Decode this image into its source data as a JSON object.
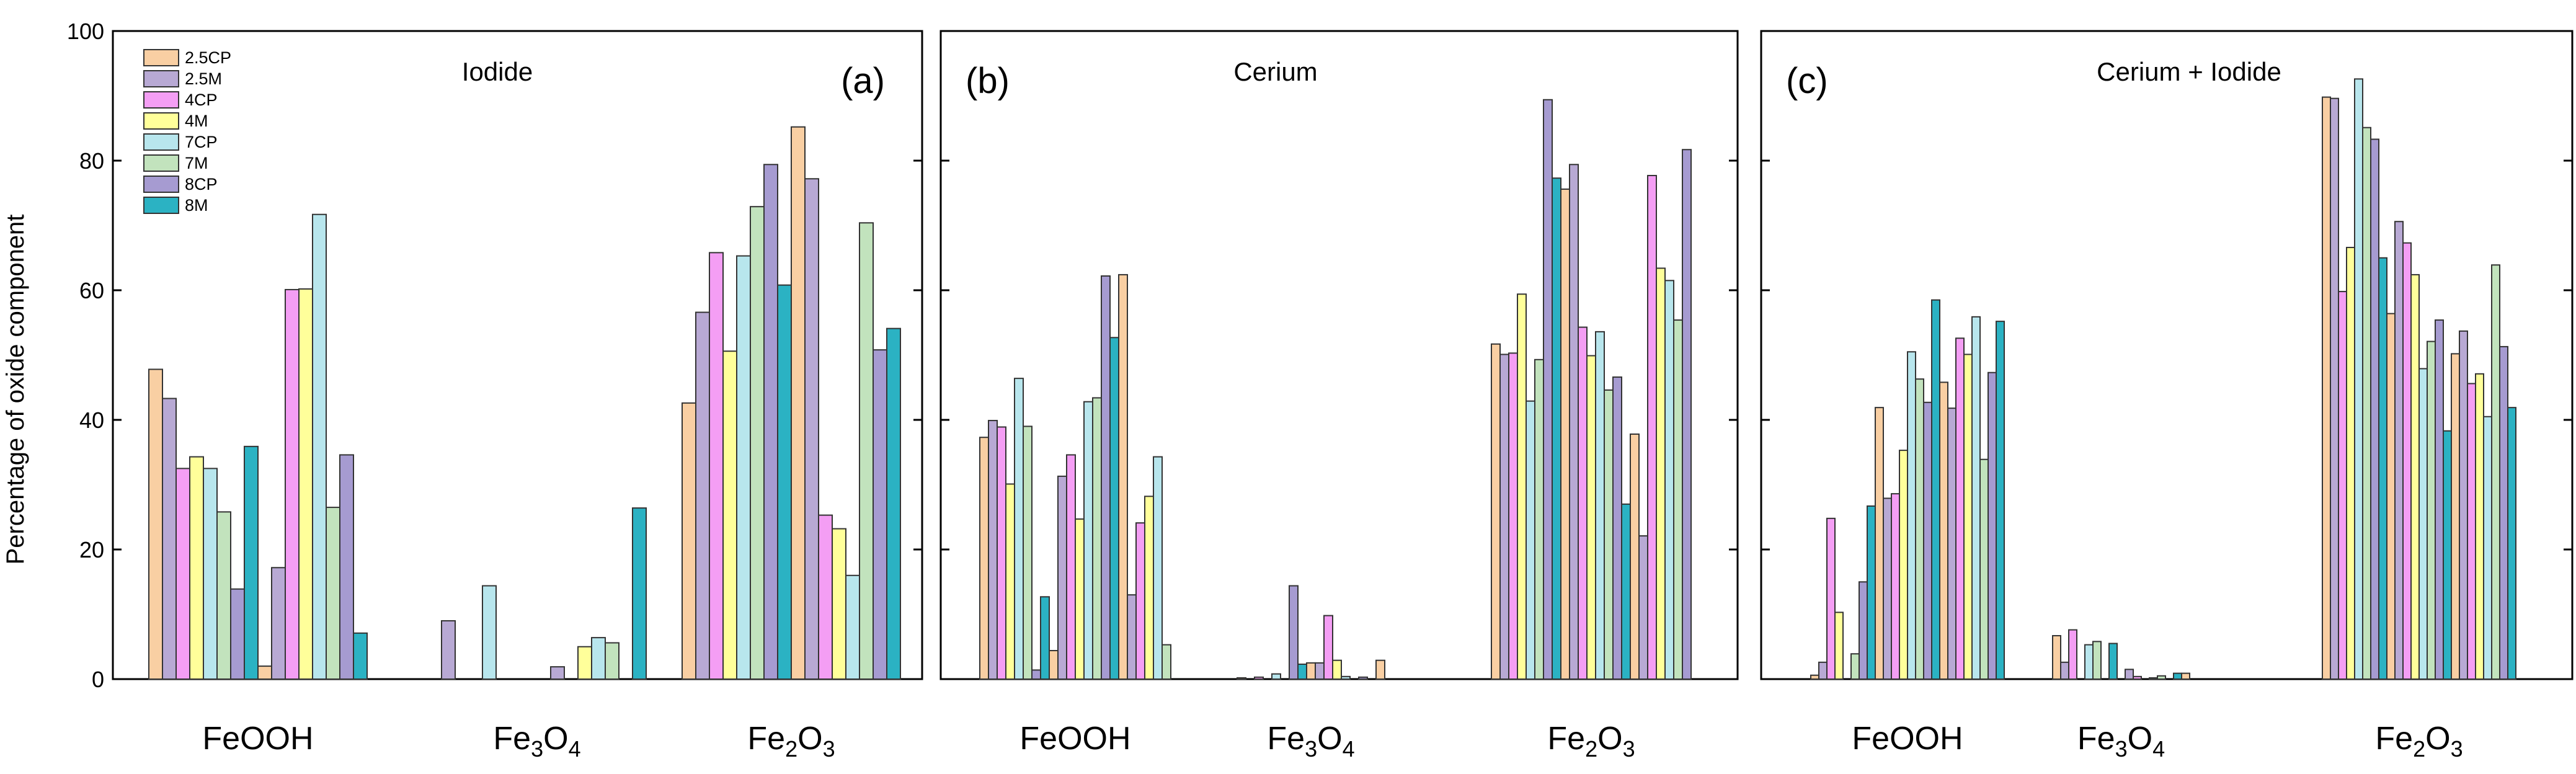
{
  "colors": [
    "#f9cfa3",
    "#b8a9d4",
    "#f49ef4",
    "#ffff9a",
    "#b8e6ed",
    "#c2e3bd",
    "#a69bd1",
    "#2bb2c3"
  ],
  "chart_data": {
    "type": "bar",
    "ylabel": "Percentage of oxide component",
    "ylim": [
      0,
      100
    ],
    "yticks": [
      0,
      20,
      40,
      60,
      80,
      100
    ],
    "legend": [
      "2.5CP",
      "2.5M",
      "4CP",
      "4M",
      "7CP",
      "7M",
      "8CP",
      "8M"
    ],
    "panels": [
      {
        "label": "(a)",
        "title": "Iodide",
        "show_yticks": true,
        "show_legend": true,
        "groups": [
          {
            "name": "FeOOH",
            "values": [
              47.8,
              43.3,
              32.5,
              34.3,
              32.5,
              25.8,
              13.9,
              35.9,
              2.0,
              17.2,
              60.1,
              60.2,
              71.7,
              26.5,
              34.6,
              7.1
            ]
          },
          {
            "name": "Fe3O4",
            "values": [
              0,
              9.0,
              0,
              0,
              14.4,
              0,
              0,
              0,
              0,
              1.9,
              0,
              5.0,
              6.4,
              5.6,
              0,
              26.4
            ]
          },
          {
            "name": "Fe2O3",
            "values": [
              42.6,
              56.6,
              65.8,
              50.6,
              65.3,
              72.9,
              79.4,
              60.8,
              85.2,
              77.2,
              25.3,
              23.2,
              16.0,
              70.4,
              50.8,
              54.1
            ]
          }
        ]
      },
      {
        "label": "(b)",
        "title": "Cerium",
        "show_yticks": false,
        "show_legend": false,
        "groups": [
          {
            "name": "FeOOH",
            "values": [
              37.3,
              39.9,
              38.9,
              30.1,
              46.4,
              39.0,
              1.4,
              12.7,
              4.4,
              31.3,
              34.6,
              24.7,
              42.8,
              43.4,
              62.2,
              52.7,
              62.4,
              13.0,
              24.1,
              28.2,
              34.3,
              5.3
            ]
          },
          {
            "name": "Fe3O4",
            "values": [
              0.2,
              0,
              0.3,
              0,
              0.8,
              0,
              14.4,
              2.3,
              2.5,
              2.5,
              9.8,
              2.9,
              0.4,
              0,
              0.3,
              0,
              2.9
            ]
          },
          {
            "name": "Fe2O3",
            "values": [
              51.7,
              50.1,
              50.3,
              59.4,
              42.9,
              49.3,
              89.4,
              77.3,
              75.6,
              79.4,
              54.3,
              49.9,
              53.6,
              44.6,
              46.6,
              27.0,
              37.8,
              22.1,
              77.7,
              63.4,
              61.5,
              55.4,
              81.7
            ]
          }
        ]
      },
      {
        "label": "(c)",
        "title": "Cerium  + Iodide",
        "show_yticks": false,
        "show_legend": false,
        "groups": [
          {
            "name": "FeOOH",
            "values": [
              0.6,
              2.6,
              24.8,
              10.3,
              0,
              3.9,
              15.0,
              26.7,
              41.9,
              27.9,
              28.6,
              35.3,
              50.5,
              46.3,
              42.7,
              58.5,
              45.8,
              41.8,
              52.6,
              50.1,
              55.9,
              33.9,
              47.3,
              55.2
            ]
          },
          {
            "name": "Fe3O4",
            "values": [
              6.7,
              2.6,
              7.6,
              0,
              5.3,
              5.8,
              0,
              5.5,
              0,
              1.5,
              0.4,
              0,
              0.2,
              0.5,
              0,
              0.9,
              0.9
            ]
          },
          {
            "name": "Fe2O3",
            "values": [
              89.8,
              89.6,
              59.8,
              66.6,
              92.6,
              85.1,
              83.3,
              65.0,
              56.4,
              70.6,
              67.3,
              62.4,
              47.9,
              52.1,
              55.4,
              38.3,
              50.2,
              53.7,
              45.6,
              47.1,
              40.5,
              63.9,
              51.3,
              41.9
            ]
          }
        ]
      }
    ]
  }
}
